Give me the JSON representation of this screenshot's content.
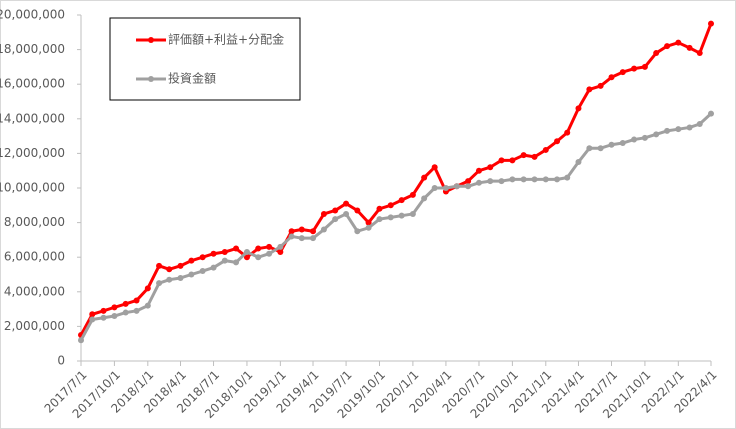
{
  "chart_data": {
    "type": "line",
    "x": [
      "2017/7/1",
      "2017/8/1",
      "2017/9/1",
      "2017/10/1",
      "2017/11/1",
      "2017/12/1",
      "2018/1/1",
      "2018/2/1",
      "2018/3/1",
      "2018/4/1",
      "2018/5/1",
      "2018/6/1",
      "2018/7/1",
      "2018/8/1",
      "2018/9/1",
      "2018/10/1",
      "2018/11/1",
      "2018/12/1",
      "2019/1/1",
      "2019/2/1",
      "2019/3/1",
      "2019/4/1",
      "2019/5/1",
      "2019/6/1",
      "2019/7/1",
      "2019/8/1",
      "2019/9/1",
      "2019/10/1",
      "2019/11/1",
      "2019/12/1",
      "2020/1/1",
      "2020/2/1",
      "2020/3/1",
      "2020/4/1",
      "2020/5/1",
      "2020/6/1",
      "2020/7/1",
      "2020/8/1",
      "2020/9/1",
      "2020/10/1",
      "2020/11/1",
      "2020/12/1",
      "2021/1/1",
      "2021/2/1",
      "2021/3/1",
      "2021/4/1",
      "2021/5/1",
      "2021/6/1",
      "2021/7/1",
      "2021/8/1",
      "2021/9/1",
      "2021/10/1",
      "2021/11/1",
      "2021/12/1",
      "2022/1/1",
      "2022/2/1",
      "2022/3/1",
      "2022/4/1"
    ],
    "series": [
      {
        "name": "評価額+利益+分配金",
        "color": "#ff0000",
        "values": [
          1500000,
          2700000,
          2900000,
          3100000,
          3300000,
          3500000,
          4200000,
          5500000,
          5300000,
          5500000,
          5800000,
          6000000,
          6200000,
          6300000,
          6500000,
          6000000,
          6500000,
          6600000,
          6300000,
          7500000,
          7600000,
          7500000,
          8500000,
          8700000,
          9100000,
          8700000,
          8000000,
          8800000,
          9000000,
          9300000,
          9600000,
          10600000,
          11200000,
          9800000,
          10100000,
          10400000,
          11000000,
          11200000,
          11600000,
          11600000,
          11900000,
          11800000,
          12200000,
          12700000,
          13200000,
          14600000,
          15700000,
          15900000,
          16400000,
          16700000,
          16900000,
          17000000,
          17800000,
          18200000,
          18400000,
          18100000,
          17800000,
          19500000
        ]
      },
      {
        "name": "投資金額",
        "color": "#a0a0a0",
        "values": [
          1200000,
          2400000,
          2500000,
          2600000,
          2800000,
          2900000,
          3200000,
          4500000,
          4700000,
          4800000,
          5000000,
          5200000,
          5400000,
          5800000,
          5700000,
          6300000,
          6000000,
          6200000,
          6600000,
          7200000,
          7100000,
          7100000,
          7600000,
          8200000,
          8500000,
          7500000,
          7700000,
          8200000,
          8300000,
          8400000,
          8500000,
          9400000,
          10000000,
          10000000,
          10100000,
          10100000,
          10300000,
          10400000,
          10400000,
          10500000,
          10500000,
          10500000,
          10500000,
          10500000,
          10600000,
          11500000,
          12300000,
          12300000,
          12500000,
          12600000,
          12800000,
          12900000,
          13100000,
          13300000,
          13400000,
          13500000,
          13700000,
          14300000
        ]
      }
    ],
    "xlim": [
      "2017/7/1",
      "2022/4/1"
    ],
    "xticks": [
      "2017/7/1",
      "2017/10/1",
      "2018/1/1",
      "2018/4/1",
      "2018/7/1",
      "2018/10/1",
      "2019/1/1",
      "2019/4/1",
      "2019/7/1",
      "2019/10/1",
      "2020/1/1",
      "2020/4/1",
      "2020/7/1",
      "2020/10/1",
      "2021/1/1",
      "2021/4/1",
      "2021/7/1",
      "2021/10/1",
      "2022/1/1",
      "2022/4/1"
    ],
    "ylim": [
      0,
      20000000
    ],
    "yticks": [
      0,
      {
        "value": 2000000,
        "label": "2,000,000"
      },
      {
        "value": 4000000,
        "label": "4,000,000"
      },
      {
        "value": 6000000,
        "label": "6,000,000"
      },
      {
        "value": 8000000,
        "label": "8,000,000"
      },
      {
        "value": 10000000,
        "label": "10,000,000"
      },
      {
        "value": 12000000,
        "label": "12,000,000"
      },
      {
        "value": 14000000,
        "label": "14,000,000"
      },
      {
        "value": 16000000,
        "label": "16,000,000"
      },
      {
        "value": 18000000,
        "label": "18,000,000"
      },
      {
        "value": 20000000,
        "label": "20,000,000"
      }
    ],
    "grid": false,
    "legend": "top-left"
  }
}
